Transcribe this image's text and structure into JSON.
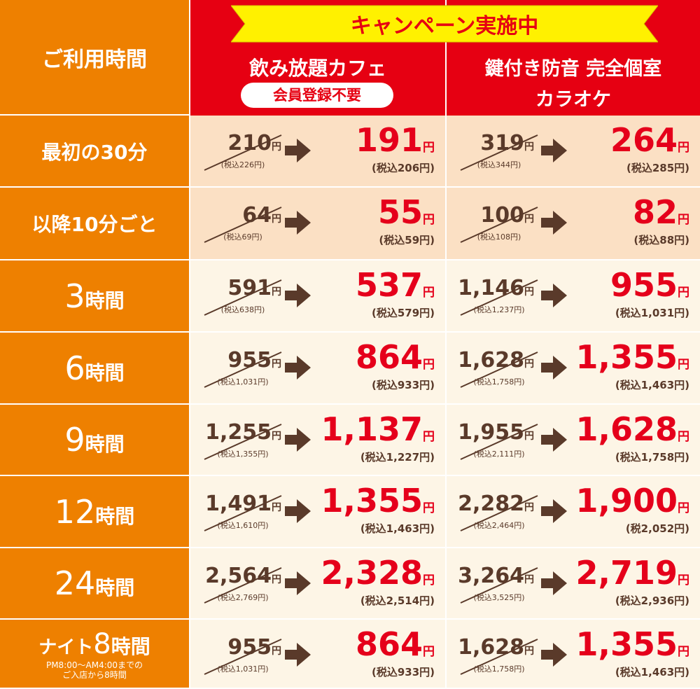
{
  "banner": "キャンペーン実施中",
  "header": {
    "time": "ご利用時間",
    "cafe": {
      "title": "飲み放題カフェ",
      "badge": "会員登録不要"
    },
    "karaoke": {
      "line1": "鍵付き防音 完全個室",
      "line2": "カラオケ"
    }
  },
  "unit": "円",
  "rows": [
    {
      "label": {
        "text": "最初の30分"
      },
      "cafe": {
        "old": "210",
        "old_tax": "(税込226円)",
        "new": "191",
        "new_tax": "(税込206円)"
      },
      "karaoke": {
        "old": "319",
        "old_tax": "(税込344円)",
        "new": "264",
        "new_tax": "(税込285円)"
      }
    },
    {
      "label": {
        "text": "以降10分ごと"
      },
      "cafe": {
        "old": "64",
        "old_tax": "(税込69円)",
        "new": "55",
        "new_tax": "(税込59円)"
      },
      "karaoke": {
        "old": "100",
        "old_tax": "(税込108円)",
        "new": "82",
        "new_tax": "(税込88円)"
      }
    },
    {
      "label": {
        "num": "3",
        "unit": "時間"
      },
      "cafe": {
        "old": "591",
        "old_tax": "(税込638円)",
        "new": "537",
        "new_tax": "(税込579円)"
      },
      "karaoke": {
        "old": "1,146",
        "old_tax": "(税込1,237円)",
        "new": "955",
        "new_tax": "(税込1,031円)"
      }
    },
    {
      "label": {
        "num": "6",
        "unit": "時間"
      },
      "cafe": {
        "old": "955",
        "old_tax": "(税込1,031円)",
        "new": "864",
        "new_tax": "(税込933円)"
      },
      "karaoke": {
        "old": "1,628",
        "old_tax": "(税込1,758円)",
        "new": "1,355",
        "new_tax": "(税込1,463円)"
      }
    },
    {
      "label": {
        "num": "9",
        "unit": "時間"
      },
      "cafe": {
        "old": "1,255",
        "old_tax": "(税込1,355円)",
        "new": "1,137",
        "new_tax": "(税込1,227円)"
      },
      "karaoke": {
        "old": "1,955",
        "old_tax": "(税込2,111円)",
        "new": "1,628",
        "new_tax": "(税込1,758円)"
      }
    },
    {
      "label": {
        "num": "12",
        "unit": "時間"
      },
      "cafe": {
        "old": "1,491",
        "old_tax": "(税込1,610円)",
        "new": "1,355",
        "new_tax": "(税込1,463円)"
      },
      "karaoke": {
        "old": "2,282",
        "old_tax": "(税込2,464円)",
        "new": "1,900",
        "new_tax": "(税2,052円)"
      }
    },
    {
      "label": {
        "num": "24",
        "unit": "時間"
      },
      "cafe": {
        "old": "2,564",
        "old_tax": "(税込2,769円)",
        "new": "2,328",
        "new_tax": "(税込2,514円)"
      },
      "karaoke": {
        "old": "3,264",
        "old_tax": "(税込3,525円)",
        "new": "2,719",
        "new_tax": "(税込2,936円)"
      }
    },
    {
      "label": {
        "prefix": "ナイト",
        "num": "8",
        "unit": "時間",
        "note": [
          "PM8:00～AM4:00までの",
          "ご入店から8時間"
        ]
      },
      "cafe": {
        "old": "955",
        "old_tax": "(税込1,031円)",
        "new": "864",
        "new_tax": "(税込933円)"
      },
      "karaoke": {
        "old": "1,628",
        "old_tax": "(税込1,758円)",
        "new": "1,355",
        "new_tax": "(税込1,463円)"
      }
    }
  ]
}
